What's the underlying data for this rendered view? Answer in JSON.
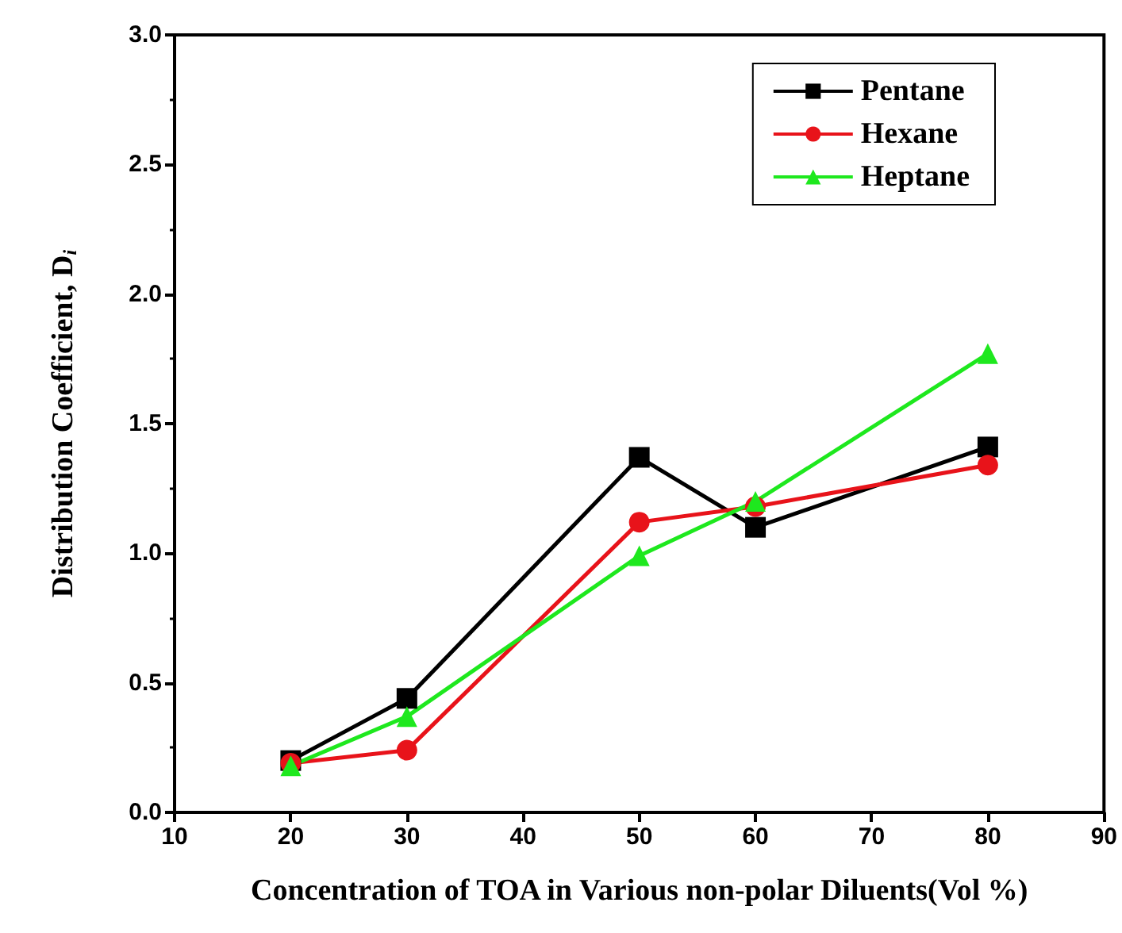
{
  "chart_data": {
    "type": "line",
    "xlabel": "Concentration of TOA in Various non-polar Diluents(Vol %)",
    "ylabel": "Distribution Coefficient, D$_{i}$",
    "x": [
      20,
      30,
      50,
      60,
      80
    ],
    "series": [
      {
        "name": "Pentane",
        "color": "#000000",
        "marker": "square",
        "values": [
          0.2,
          0.44,
          1.37,
          1.1,
          1.41
        ]
      },
      {
        "name": "Hexane",
        "color": "#e8131a",
        "marker": "circle",
        "values": [
          0.19,
          0.24,
          1.12,
          1.18,
          1.34
        ]
      },
      {
        "name": "Heptane",
        "color": "#1ee81e",
        "marker": "triangle",
        "values": [
          0.18,
          0.37,
          0.99,
          1.2,
          1.77
        ]
      }
    ],
    "xlim": [
      10,
      90
    ],
    "xticks": [
      10,
      20,
      30,
      40,
      50,
      60,
      70,
      80,
      90
    ],
    "ylim": [
      0,
      3
    ],
    "yticks": [
      {
        "value": 0,
        "label": "0.0"
      },
      {
        "value": 0.5,
        "label": "0.5"
      },
      {
        "value": 1,
        "label": "1.0"
      },
      {
        "value": 1.5,
        "label": "1.5"
      },
      {
        "value": 2,
        "label": "2.0"
      },
      {
        "value": 2.5,
        "label": "2.5"
      },
      {
        "value": 3,
        "label": "3.0"
      }
    ],
    "legend": "top right",
    "grid": false,
    "line_style": "solid"
  }
}
